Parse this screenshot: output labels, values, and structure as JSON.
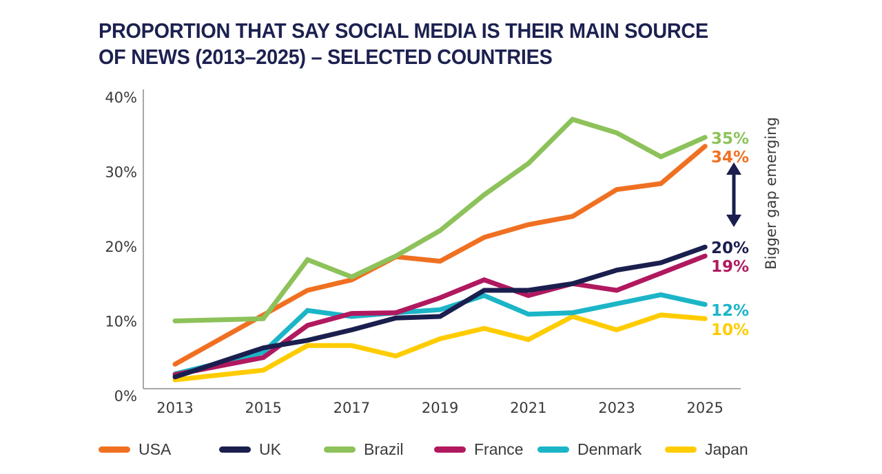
{
  "chart_data": {
    "type": "line",
    "title": "PROPORTION THAT SAY SOCIAL MEDIA IS THEIR MAIN SOURCE OF NEWS (2013–2025) – SELECTED COUNTRIES",
    "title_lines": [
      "PROPORTION THAT SAY SOCIAL MEDIA IS THEIR MAIN SOURCE",
      "OF NEWS (2013–2025) – SELECTED COUNTRIES"
    ],
    "xlabel": "",
    "ylabel": "",
    "x": [
      2013,
      2015,
      2016,
      2017,
      2018,
      2019,
      2020,
      2021,
      2022,
      2023,
      2024,
      2025
    ],
    "xlim": [
      2012.3,
      2025.8
    ],
    "x_ticks": [
      2013,
      2015,
      2017,
      2019,
      2021,
      2023,
      2025
    ],
    "x_tick_labels": [
      "2013",
      "2015",
      "2017",
      "2019",
      "2021",
      "2023",
      "2025"
    ],
    "ylim": [
      0,
      40
    ],
    "y_ticks": [
      0,
      10,
      20,
      30,
      40
    ],
    "y_tick_labels": [
      "0%",
      "10%",
      "20%",
      "30%",
      "40%"
    ],
    "grid": false,
    "legend_position": "bottom",
    "series": [
      {
        "name": "USA",
        "color": "#f07022",
        "end_label": "34%",
        "values": [
          4.2,
          10.8,
          14.1,
          15.5,
          18.6,
          18.0,
          21.2,
          22.9,
          24.0,
          27.6,
          28.4,
          33.4
        ]
      },
      {
        "name": "UK",
        "color": "#1a1f4e",
        "end_label": "20%",
        "values": [
          2.5,
          6.4,
          7.4,
          8.8,
          10.4,
          10.6,
          14.1,
          14.1,
          15.0,
          16.8,
          17.8,
          19.9
        ]
      },
      {
        "name": "Brazil",
        "color": "#8dc25a",
        "end_label": "35%",
        "values": [
          10.0,
          10.3,
          18.2,
          15.9,
          18.7,
          22.1,
          26.9,
          31.1,
          37.0,
          35.2,
          32.0,
          34.6
        ]
      },
      {
        "name": "France",
        "color": "#b0195f",
        "end_label": "19%",
        "values": [
          2.8,
          5.1,
          9.4,
          11.0,
          11.1,
          13.1,
          15.5,
          13.4,
          15.0,
          14.1,
          16.4,
          18.7
        ]
      },
      {
        "name": "Denmark",
        "color": "#1bb5c7",
        "end_label": "12%",
        "values": [
          2.9,
          5.8,
          11.4,
          10.6,
          11.1,
          11.5,
          13.4,
          10.9,
          11.1,
          12.3,
          13.5,
          12.2
        ]
      },
      {
        "name": "Japan",
        "color": "#ffcc00",
        "end_label": "10%",
        "values": [
          2.1,
          3.4,
          6.7,
          6.7,
          5.3,
          7.6,
          9.0,
          7.5,
          10.6,
          8.8,
          10.8,
          10.3
        ]
      }
    ],
    "annotations": [
      {
        "text": "Bigger gap emerging",
        "type": "double-arrow",
        "between": [
          "USA",
          "UK"
        ],
        "color": "#1a1f4e"
      }
    ]
  }
}
